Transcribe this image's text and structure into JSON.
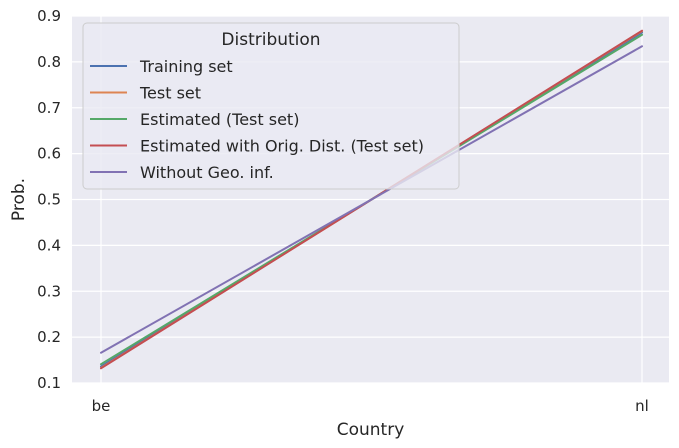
{
  "chart_data": {
    "type": "line",
    "categories": [
      "be",
      "nl"
    ],
    "xlabel": "Country",
    "ylabel": "Prob.",
    "ylim": [
      0.1,
      0.9
    ],
    "yticks": [
      "0.1",
      "0.2",
      "0.3",
      "0.4",
      "0.5",
      "0.6",
      "0.7",
      "0.8",
      "0.9"
    ],
    "grid": true,
    "legend": {
      "title": "Distribution",
      "placement": "top-left"
    },
    "series": [
      {
        "name": "Training set",
        "color": "#4c72b0",
        "values": [
          0.136,
          0.864
        ]
      },
      {
        "name": "Test set",
        "color": "#dd8452",
        "values": [
          0.133,
          0.867
        ]
      },
      {
        "name": "Estimated (Test set)",
        "color": "#55a868",
        "values": [
          0.141,
          0.859
        ]
      },
      {
        "name": "Estimated with Orig. Dist. (Test set)",
        "color": "#c44e52",
        "values": [
          0.132,
          0.868
        ]
      },
      {
        "name": "Without Geo. inf.",
        "color": "#8172b3",
        "values": [
          0.166,
          0.834
        ]
      }
    ]
  }
}
